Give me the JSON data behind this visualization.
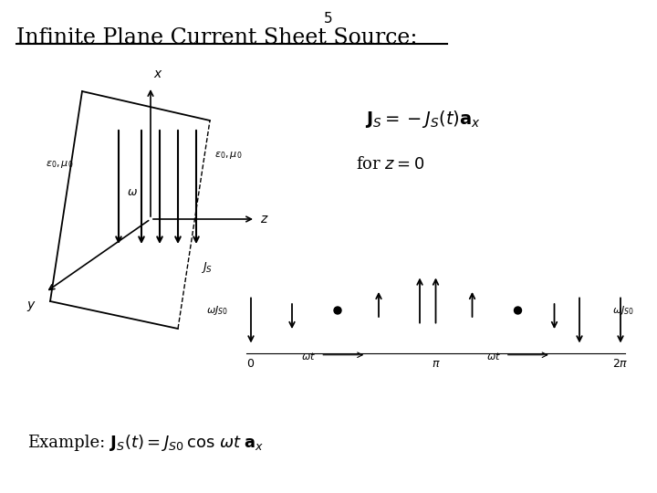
{
  "background_color": "#ffffff",
  "page_number": "5",
  "title": "Infinite Plane Current Sheet Source:",
  "title_fontsize": 17,
  "equation1": "$\\mathbf{J}_S = -J_S\\left(t\\right)\\mathbf{a}_x$",
  "equation2": "for $z = 0$",
  "example_label": "Example:",
  "example_eq": "$\\mathbf{J}_S(t) = J_{S0}\\,\\cos\\,\\omega t\\;\\mathbf{a}_x$",
  "plane_color": "#000000",
  "arrow_color": "#000000"
}
